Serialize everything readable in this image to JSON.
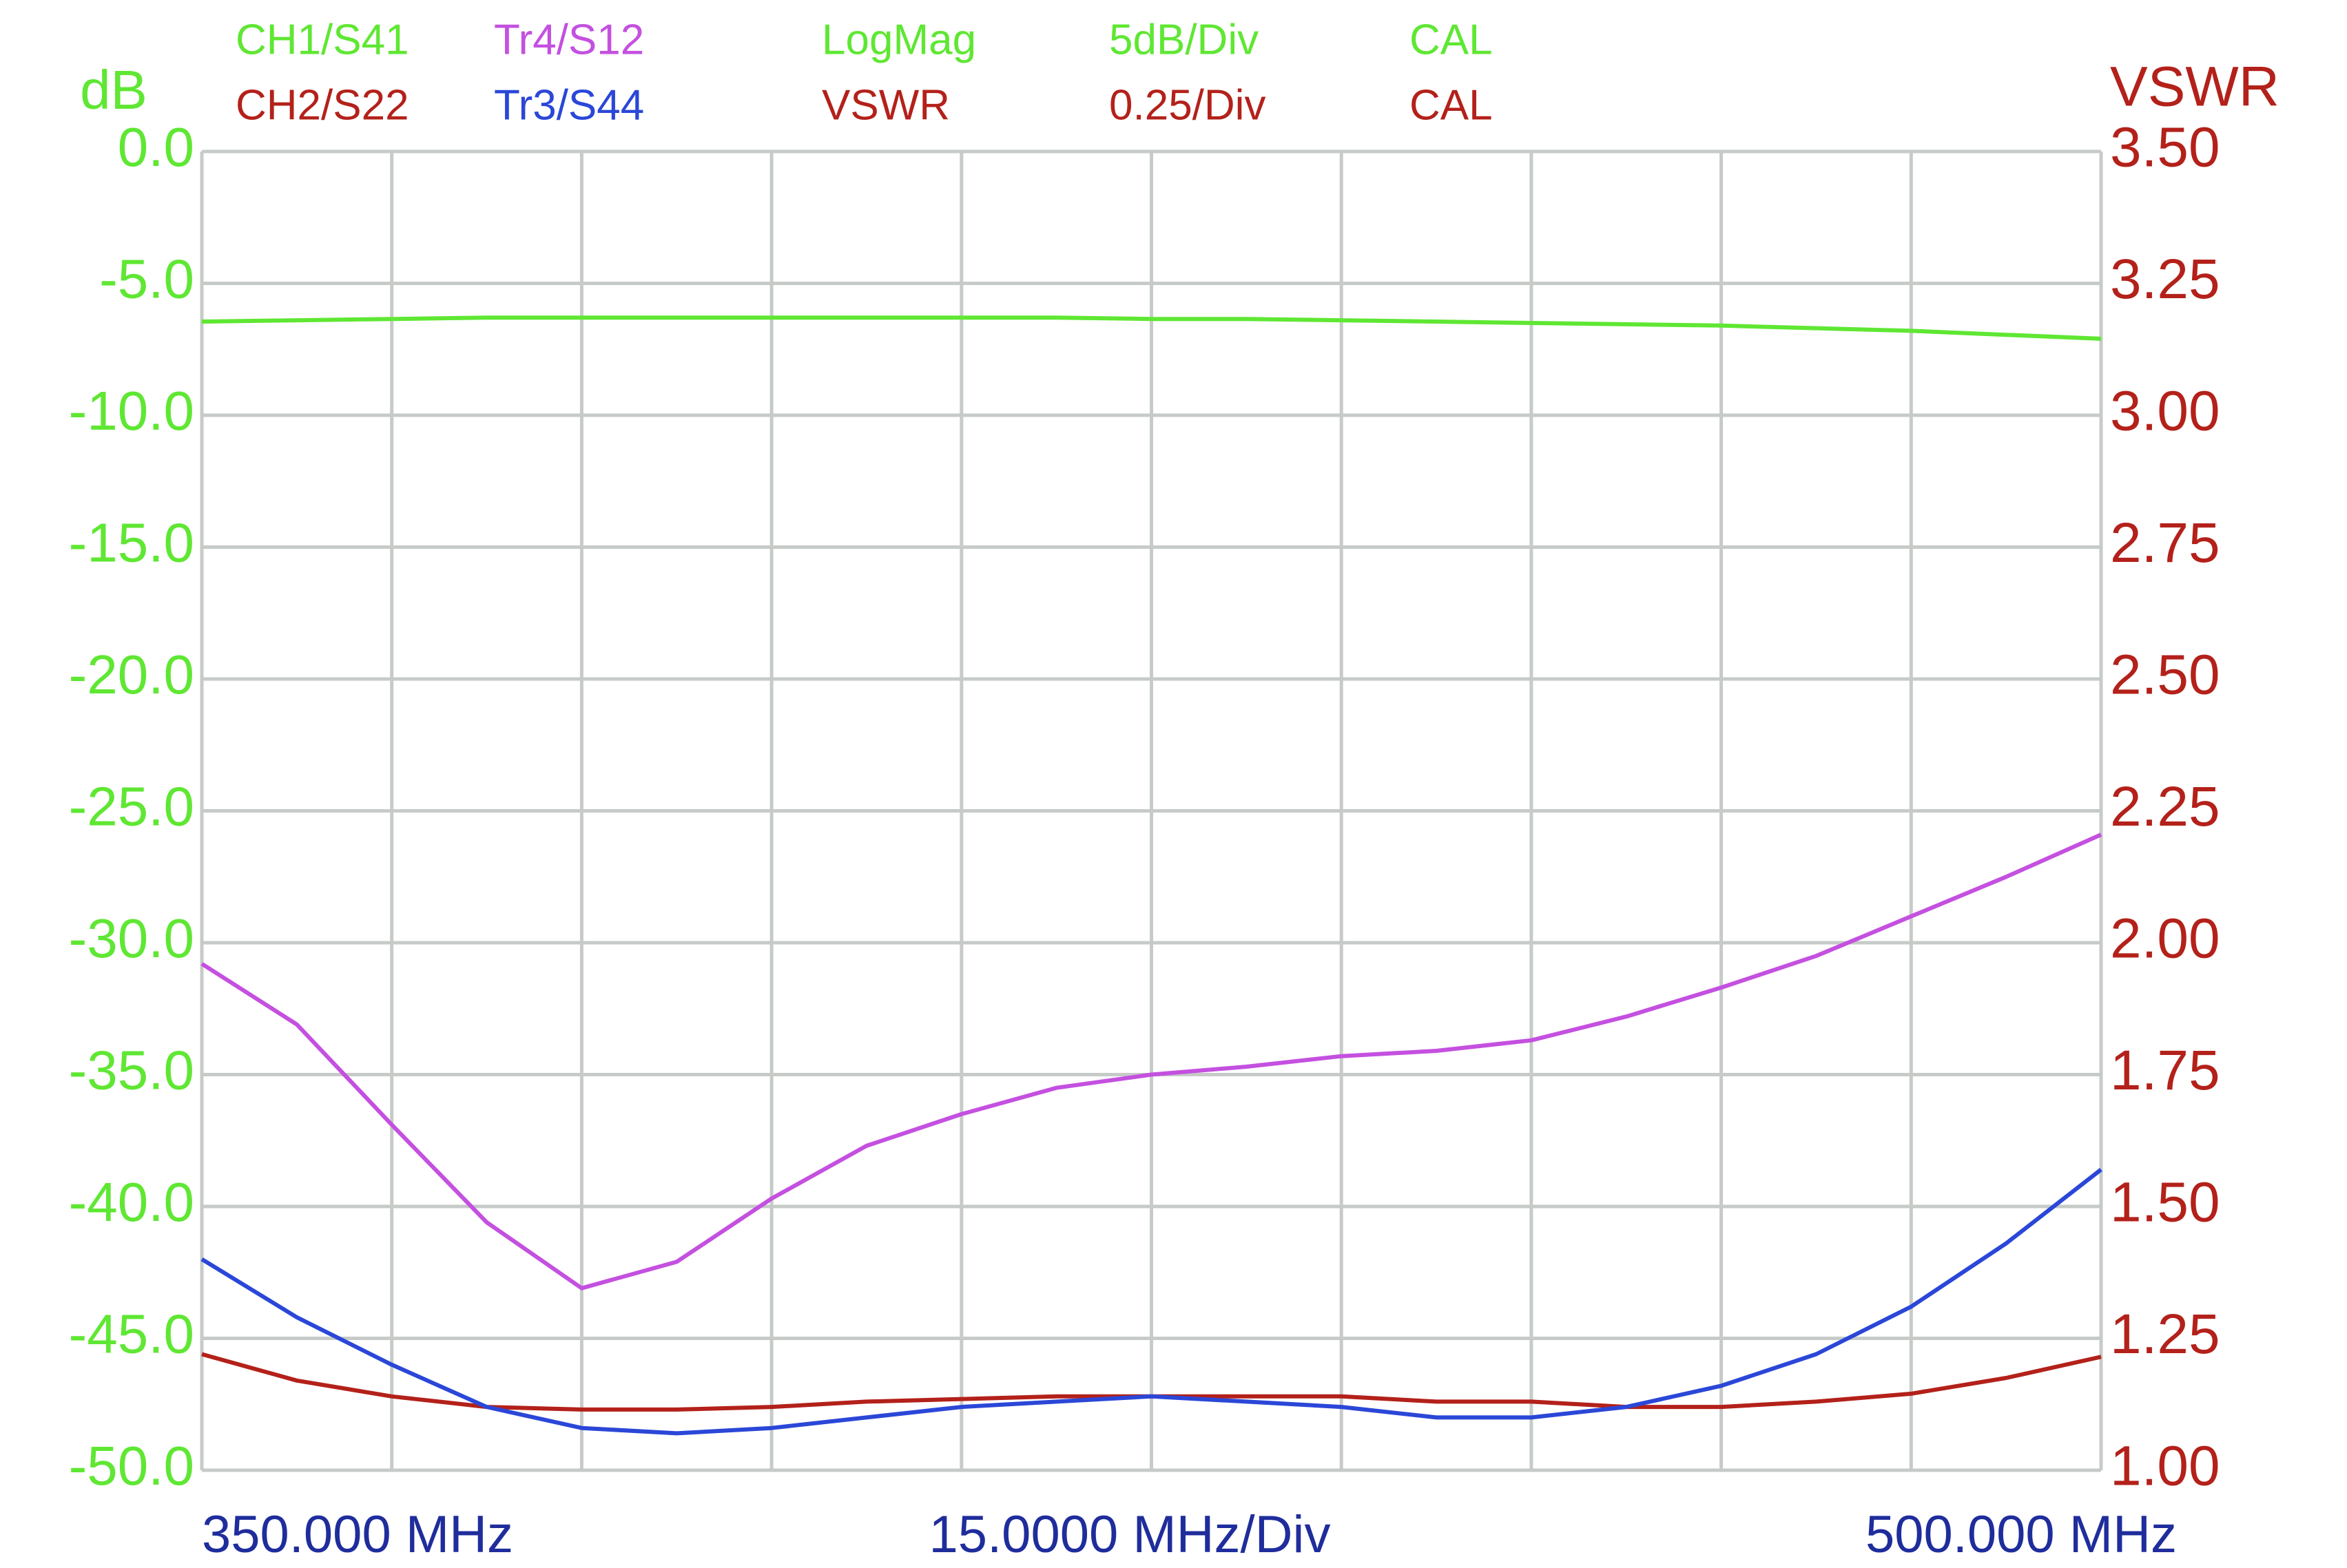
{
  "chart_data": {
    "type": "line",
    "ylabel": "dB",
    "y2label": "VSWR",
    "y_axis_color": "#5fe733",
    "y2_axis_color": "#b3211a",
    "x_label_color": "#1f2d9c",
    "grid": true,
    "grid_color": "#c6cbc8",
    "x_start_label": "350.000 MHz",
    "x_center_label": "15.0000 MHz/Div",
    "x_stop_label": "500.000 MHz",
    "header_rows": [
      {
        "items": [
          "LogMag",
          "5dB/Div",
          "CAL"
        ]
      },
      {
        "items": [
          "VSWR",
          "0.25/Div",
          "CAL"
        ]
      }
    ],
    "xlim": [
      350,
      500
    ],
    "xticks": [
      350,
      365,
      380,
      395,
      410,
      425,
      440,
      455,
      470,
      485,
      500
    ],
    "ylim": [
      -50,
      0
    ],
    "yticks": [
      {
        "value": -50,
        "label": "-50.0"
      },
      {
        "value": -45,
        "label": "-45.0"
      },
      {
        "value": -40,
        "label": "-40.0"
      },
      {
        "value": -35,
        "label": "-35.0"
      },
      {
        "value": -30,
        "label": "-30.0"
      },
      {
        "value": -25,
        "label": "-25.0"
      },
      {
        "value": -20,
        "label": "-20.0"
      },
      {
        "value": -15,
        "label": "-15.0"
      },
      {
        "value": -10,
        "label": "-10.0"
      },
      {
        "value": -5,
        "label": "-5.0"
      },
      {
        "value": 0,
        "label": "0.0"
      }
    ],
    "y2lim": [
      1,
      3.5
    ],
    "y2ticks": [
      {
        "value": 1,
        "label": "1.00"
      },
      {
        "value": 1.25,
        "label": "1.25"
      },
      {
        "value": 1.5,
        "label": "1.50"
      },
      {
        "value": 1.75,
        "label": "1.75"
      },
      {
        "value": 2,
        "label": "2.00"
      },
      {
        "value": 2.25,
        "label": "2.25"
      },
      {
        "value": 2.5,
        "label": "2.50"
      },
      {
        "value": 2.75,
        "label": "2.75"
      },
      {
        "value": 3,
        "label": "3.00"
      },
      {
        "value": 3.25,
        "label": "3.25"
      },
      {
        "value": 3.5,
        "label": "3.50"
      }
    ],
    "x": [
      350,
      357.5,
      365,
      372.5,
      380,
      387.5,
      395,
      402.5,
      410,
      417.5,
      425,
      432.5,
      440,
      447.5,
      455,
      462.5,
      470,
      477.5,
      485,
      492.5,
      500
    ],
    "series": [
      {
        "name": "CH1/S41",
        "color": "#5fe733",
        "axis": "y",
        "values": [
          -6.45,
          -6.4,
          -6.35,
          -6.3,
          -6.3,
          -6.3,
          -6.3,
          -6.3,
          -6.3,
          -6.3,
          -6.35,
          -6.35,
          -6.4,
          -6.45,
          -6.5,
          -6.55,
          -6.6,
          -6.7,
          -6.8,
          -6.95,
          -7.1
        ]
      },
      {
        "name": "Tr4/S12",
        "color": "#c450e0",
        "axis": "y",
        "values": [
          -30.8,
          -33.1,
          -36.9,
          -40.6,
          -43.1,
          -42.1,
          -39.7,
          -37.7,
          -36.5,
          -35.5,
          -35.0,
          -34.7,
          -34.3,
          -34.1,
          -33.7,
          -32.8,
          -31.7,
          -30.5,
          -29.0,
          -27.5,
          -25.9
        ]
      },
      {
        "name": "CH2/S22",
        "color": "#b3211a",
        "axis": "y2",
        "values": [
          1.22,
          1.17,
          1.14,
          1.12,
          1.115,
          1.115,
          1.12,
          1.13,
          1.135,
          1.14,
          1.14,
          1.14,
          1.14,
          1.13,
          1.13,
          1.12,
          1.12,
          1.13,
          1.145,
          1.175,
          1.215
        ]
      },
      {
        "name": "Tr3/S44",
        "color": "#2b47d8",
        "axis": "y2",
        "values": [
          1.4,
          1.29,
          1.2,
          1.12,
          1.08,
          1.07,
          1.08,
          1.1,
          1.12,
          1.13,
          1.14,
          1.13,
          1.12,
          1.1,
          1.1,
          1.12,
          1.16,
          1.22,
          1.31,
          1.43,
          1.57
        ]
      }
    ]
  }
}
